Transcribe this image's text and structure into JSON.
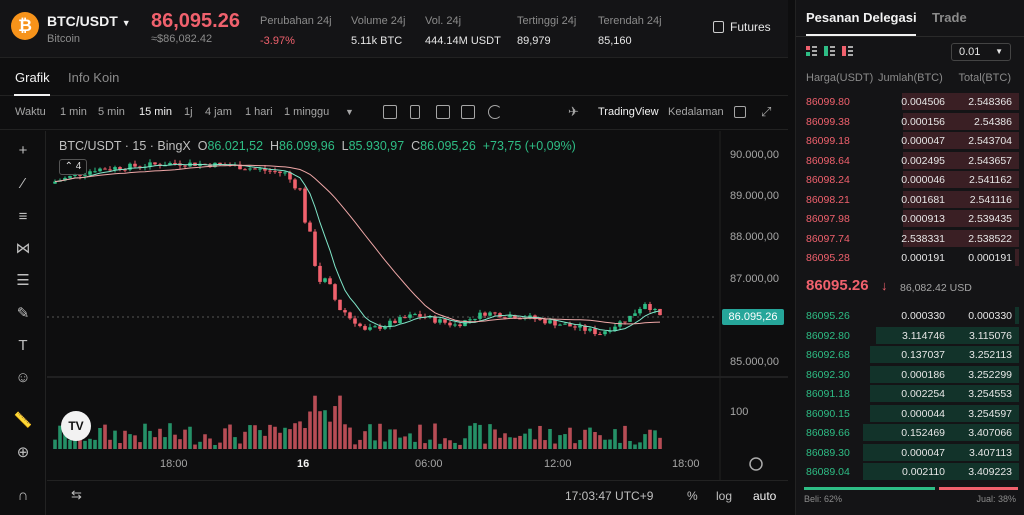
{
  "header": {
    "coin_symbol_glyph": "₿",
    "pair": "BTC/USDT",
    "coin_name": "Bitcoin",
    "price": "86,095.26",
    "price_sub": "≈$86,082.42",
    "stats": [
      {
        "label": "Perubahan 24j",
        "value": "-3.97%"
      },
      {
        "label": "Volume 24j",
        "value": "5.11k BTC"
      },
      {
        "label": "Vol. 24j",
        "value": "444.14M USDT"
      },
      {
        "label": "Tertinggi 24j",
        "value": "89,979"
      },
      {
        "label": "Terendah 24j",
        "value": "85,160"
      }
    ],
    "futures_label": "Futures"
  },
  "tabs": [
    {
      "label": "Grafik"
    },
    {
      "label": "Info Koin"
    }
  ],
  "toolbar": {
    "time_label": "Waktu",
    "intervals": [
      "1 min",
      "5 min",
      "15 min",
      "1j",
      "4 jam",
      "1 hari",
      "1 minggu"
    ],
    "active_interval": "15 min",
    "tradingview_label": "TradingView",
    "depth_label": "Kedalaman"
  },
  "chart": {
    "symbol_line": "BTC/USDT · 15 · BingX",
    "o_label": "O",
    "o_value": "86.021,52",
    "h_label": "H",
    "h_value": "86.099,96",
    "l_label": "L",
    "l_value": "85.930,97",
    "c_label": "C",
    "c_value": "86.095,26",
    "change": "+73,75 (+0,09%)",
    "indicator_count": "4",
    "price_tag": "86.095,26",
    "y_labels": [
      "90.000,00",
      "89.000,00",
      "88.000,00",
      "87.000,00",
      "85.000,00",
      "100"
    ],
    "x_labels": [
      "18:00",
      "16",
      "06:00",
      "12:00",
      "18:00"
    ],
    "tv_logo": "TV",
    "colors": {
      "up": "#2ebd85",
      "down": "#f0616d",
      "ma_fast": "#7fe6c9",
      "ma_slow": "#f0a8a8"
    }
  },
  "bottombar": {
    "time": "17:03:47 UTC+9",
    "percent": "%",
    "log": "log",
    "auto": "auto"
  },
  "orderbook": {
    "tabs": [
      "Pesanan Delegasi",
      "Trade"
    ],
    "step": "0.01",
    "col_price": "Harga(USDT)",
    "col_amount": "Jumlah(BTC)",
    "col_total": "Total(BTC)",
    "asks": [
      {
        "price": "86099.80",
        "amount": "0.004506",
        "total": "2.548366"
      },
      {
        "price": "86099.38",
        "amount": "0.000156",
        "total": "2.54386"
      },
      {
        "price": "86099.18",
        "amount": "0.000047",
        "total": "2.543704"
      },
      {
        "price": "86098.64",
        "amount": "0.002495",
        "total": "2.543657"
      },
      {
        "price": "86098.24",
        "amount": "0.000046",
        "total": "2.541162"
      },
      {
        "price": "86098.21",
        "amount": "0.001681",
        "total": "2.541116"
      },
      {
        "price": "86097.98",
        "amount": "0.000913",
        "total": "2.539435"
      },
      {
        "price": "86097.74",
        "amount": "2.538331",
        "total": "2.538522"
      },
      {
        "price": "86095.28",
        "amount": "0.000191",
        "total": "0.000191"
      }
    ],
    "mid_price": "86095.26",
    "mid_arrow": "↓",
    "mid_sub": "86,082.42 USD",
    "bids": [
      {
        "price": "86095.26",
        "amount": "0.000330",
        "total": "0.000330"
      },
      {
        "price": "86092.80",
        "amount": "3.114746",
        "total": "3.115076"
      },
      {
        "price": "86092.68",
        "amount": "0.137037",
        "total": "3.252113"
      },
      {
        "price": "86092.30",
        "amount": "0.000186",
        "total": "3.252299"
      },
      {
        "price": "86091.18",
        "amount": "0.002254",
        "total": "3.254553"
      },
      {
        "price": "86090.15",
        "amount": "0.000044",
        "total": "3.254597"
      },
      {
        "price": "86089.66",
        "amount": "0.152469",
        "total": "3.407066"
      },
      {
        "price": "86089.30",
        "amount": "0.000047",
        "total": "3.407113"
      },
      {
        "price": "86089.04",
        "amount": "0.002110",
        "total": "3.409223"
      }
    ],
    "buy_label": "Beli: 62%",
    "sell_label": "Jual: 38%",
    "buy_pct": 62,
    "sell_pct": 38
  }
}
